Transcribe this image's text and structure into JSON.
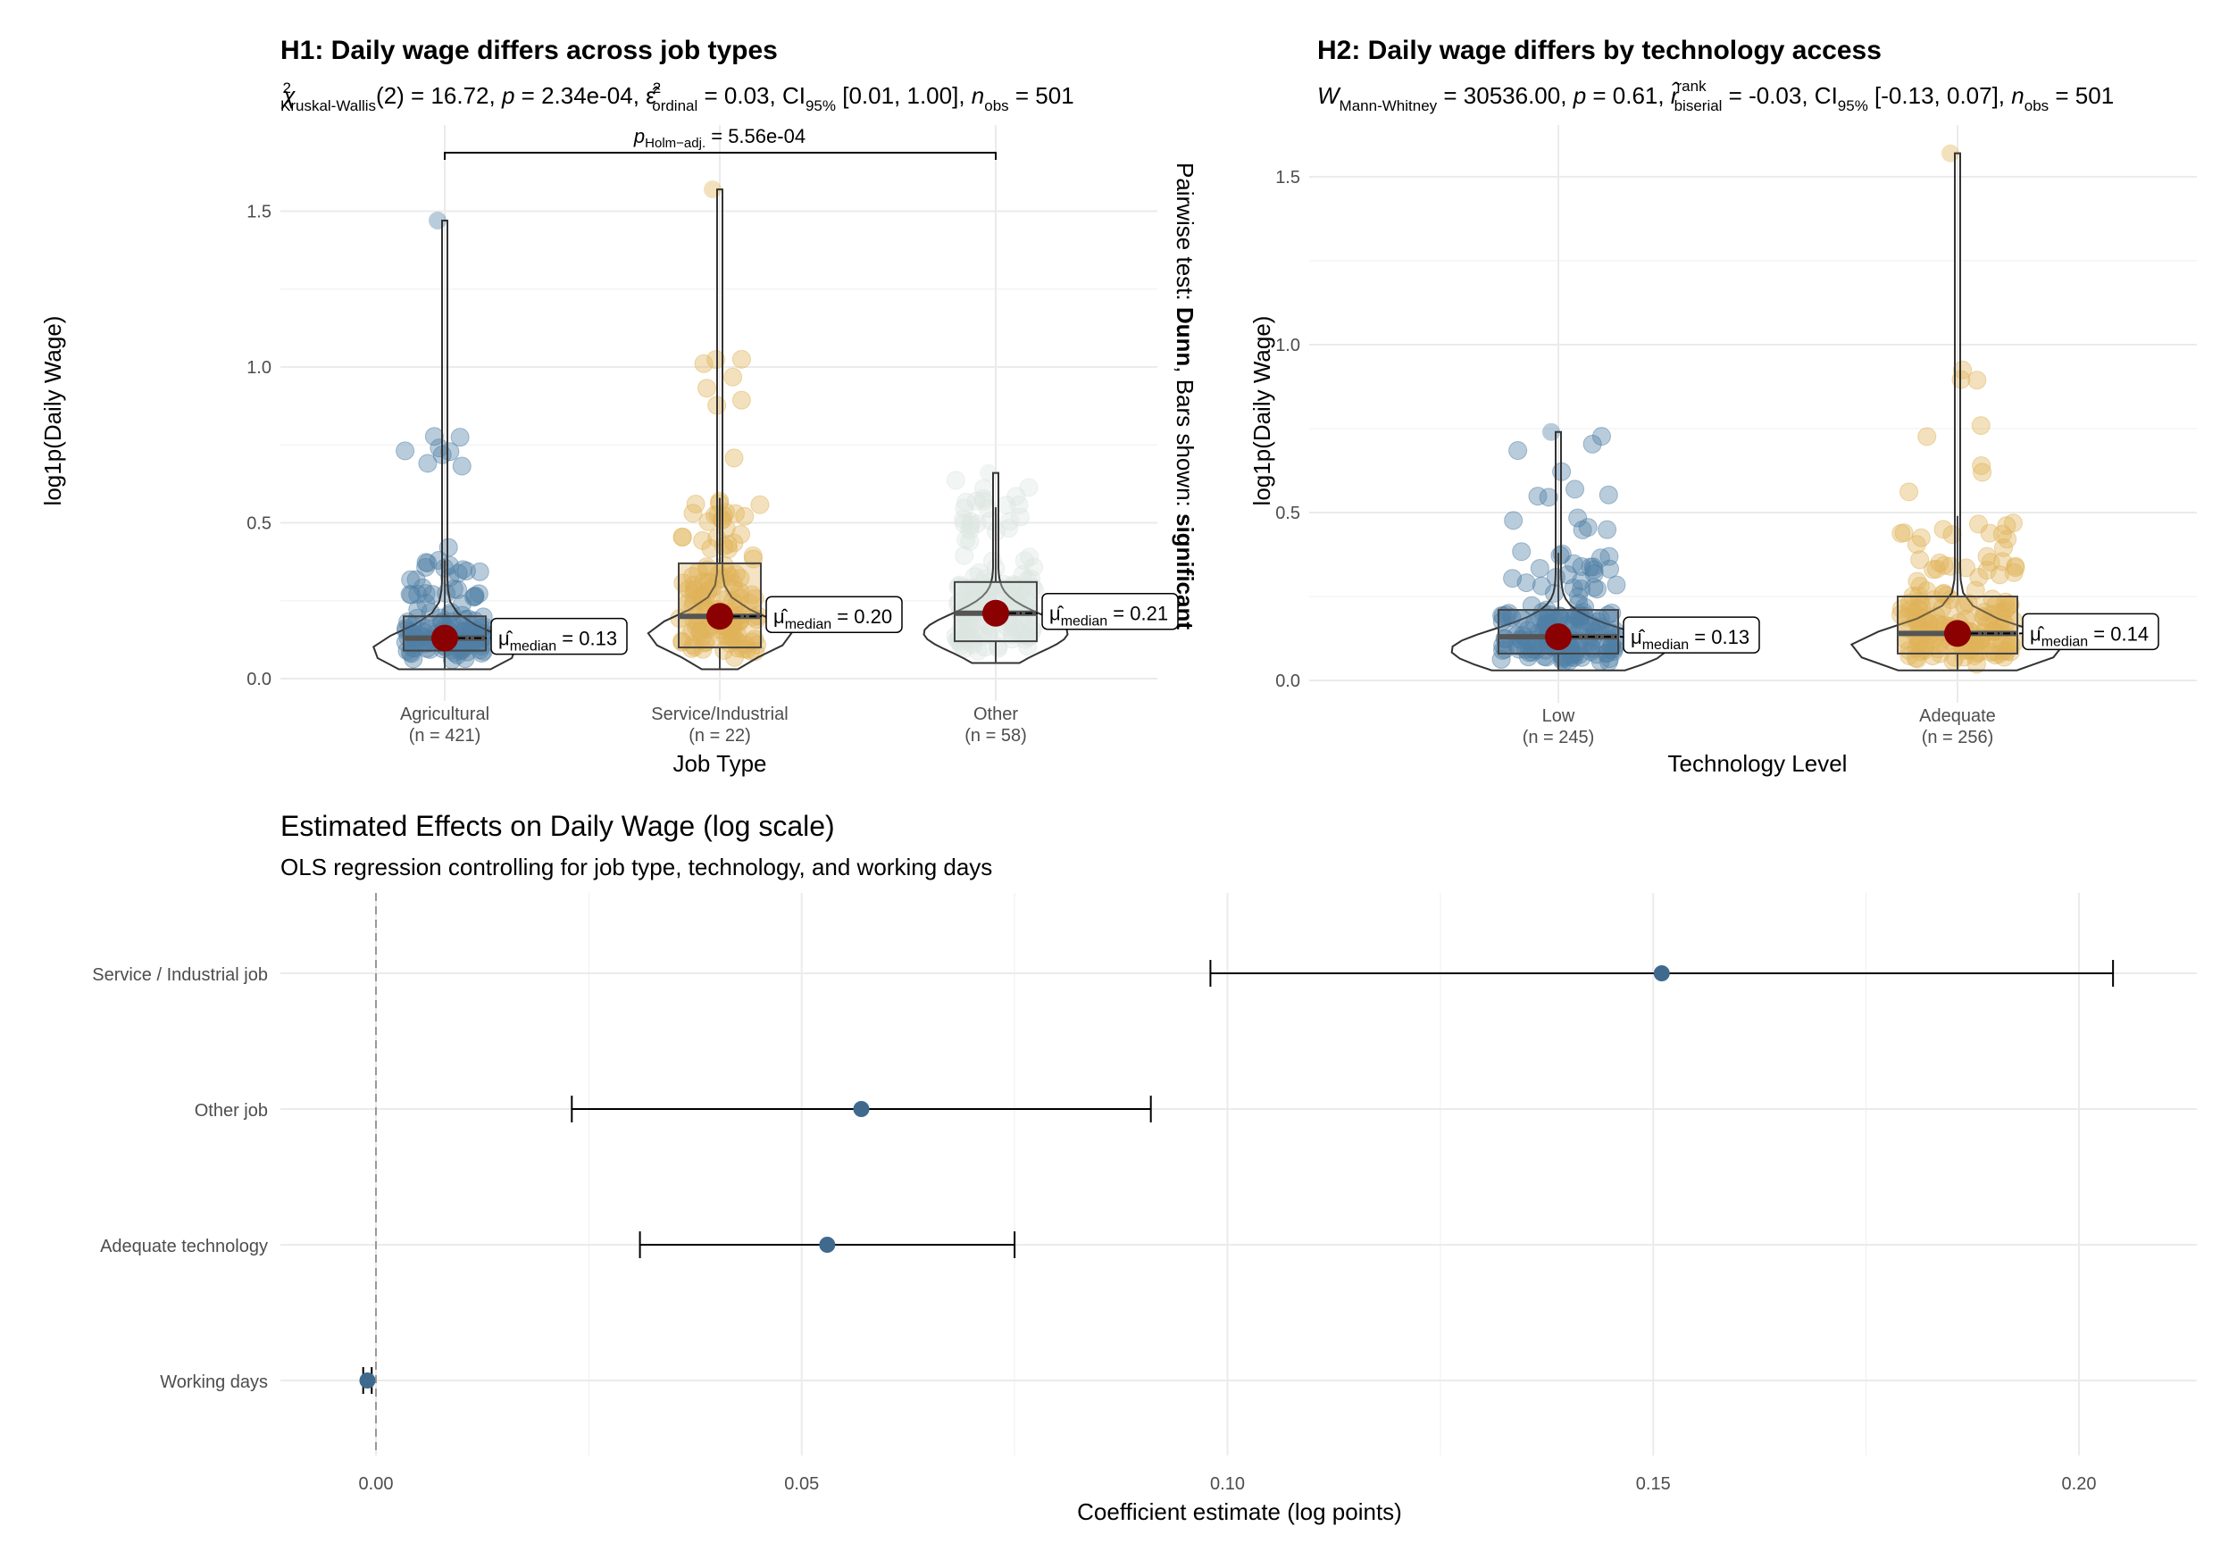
{
  "chart_data": [
    {
      "id": "h1",
      "type": "violin-box-scatter",
      "title": "H1: Daily wage differs across job types",
      "subtitle": {
        "stat_symbol": "χ",
        "stat_sup": "2",
        "stat_sub": "Kruskal-Wallis",
        "stat_rest": "(2) = 16.72, ",
        "p_label": "p",
        "p_rest": " = 2.34e-04, ",
        "eff_symbol": "ε̂",
        "eff_sup": "2",
        "eff_sub": "ordinal",
        "eff_rest": " = 0.03, CI",
        "ci_sub": "95%",
        "ci_rest": " [0.01, 1.00], ",
        "n_label": "n",
        "n_sub": "obs",
        "n_rest": " = 501"
      },
      "xlabel": "Job Type",
      "ylabel": "log1p(Daily Wage)",
      "ylim": [
        0,
        1.65
      ],
      "yticks": [
        "0.0",
        "0.5",
        "1.0",
        "1.5"
      ],
      "ytick_values": [
        0,
        0.5,
        1.0,
        1.5
      ],
      "groups": [
        {
          "name": "Agricultural",
          "n_label": "(n = 421)",
          "color": "#4f7fa6",
          "median": 0.13,
          "median_label": "= 0.13",
          "q1": 0.09,
          "q3": 0.2,
          "whisker_low": 0.03,
          "whisker_high": 0.38,
          "max": 1.47
        },
        {
          "name": "Service/Industrial",
          "n_label": "(n = 22)",
          "color": "#e0b35a",
          "median": 0.2,
          "median_label": "= 0.20",
          "q1": 0.1,
          "q3": 0.37,
          "whisker_low": 0.03,
          "whisker_high": 0.58,
          "max": 1.57
        },
        {
          "name": "Other",
          "n_label": "(n = 58)",
          "color": "#dde6e1",
          "median": 0.21,
          "median_label": "= 0.21",
          "q1": 0.12,
          "q3": 0.31,
          "whisker_low": 0.05,
          "whisker_high": 0.55,
          "max": 0.66
        }
      ],
      "median_symbol": "μ̂",
      "median_sub": "median",
      "pairwise": {
        "from": "Agricultural",
        "to": "Other",
        "label_p": "p",
        "label_sub": "Holm−adj.",
        "label_rest": " = 5.56e-04"
      },
      "caption": {
        "part1": "Pairwise test: ",
        "part2": "Dunn",
        "part3": ", Bars shown: ",
        "part4": "significant"
      }
    },
    {
      "id": "h2",
      "type": "violin-box-scatter",
      "title": "H2: Daily wage differs by technology access",
      "subtitle": {
        "stat_symbol": "W",
        "stat_sub": "Mann-Whitney",
        "stat_rest": " = 30536.00, ",
        "p_label": "p",
        "p_rest": " = 0.61, ",
        "eff_symbol": "r̂",
        "eff_sup": "rank",
        "eff_sub": "biserial",
        "eff_rest": " = -0.03, CI",
        "ci_sub": "95%",
        "ci_rest": " [-0.13, 0.07], ",
        "n_label": "n",
        "n_sub": "obs",
        "n_rest": " = 501"
      },
      "xlabel": "Technology Level",
      "ylabel": "log1p(Daily Wage)",
      "ylim": [
        0,
        1.6
      ],
      "yticks": [
        "0.0",
        "0.5",
        "1.0",
        "1.5"
      ],
      "ytick_values": [
        0,
        0.5,
        1.0,
        1.5
      ],
      "groups": [
        {
          "name": "Low",
          "n_label": "(n = 245)",
          "color": "#4f7fa6",
          "median": 0.13,
          "median_label": "= 0.13",
          "q1": 0.08,
          "q3": 0.21,
          "whisker_low": 0.03,
          "whisker_high": 0.38,
          "max": 0.74
        },
        {
          "name": "Adequate",
          "n_label": "(n = 256)",
          "color": "#e0b35a",
          "median": 0.14,
          "median_label": "= 0.14",
          "q1": 0.08,
          "q3": 0.25,
          "whisker_low": 0.03,
          "whisker_high": 0.49,
          "max": 1.57
        }
      ],
      "median_symbol": "μ̂",
      "median_sub": "median"
    },
    {
      "id": "coef",
      "type": "scatter",
      "title": "Estimated Effects on Daily Wage (log scale)",
      "subtitle": "OLS regression controlling for job type, technology, and working days",
      "xlabel": "Coefficient estimate (log points)",
      "xlim": [
        -0.013,
        0.215
      ],
      "xticks": [
        "0.00",
        "0.05",
        "0.10",
        "0.15",
        "0.20"
      ],
      "xtick_values": [
        0,
        0.05,
        0.1,
        0.15,
        0.2
      ],
      "reference_line": 0,
      "terms": [
        {
          "label": "Service / Industrial job",
          "estimate": 0.151,
          "ci_low": 0.098,
          "ci_high": 0.204
        },
        {
          "label": "Other job",
          "estimate": 0.057,
          "ci_low": 0.023,
          "ci_high": 0.091
        },
        {
          "label": "Adequate technology",
          "estimate": 0.053,
          "ci_low": 0.031,
          "ci_high": 0.075
        },
        {
          "label": "Working days",
          "estimate": -0.001,
          "ci_low": -0.0015,
          "ci_high": -0.0005
        }
      ],
      "point_color": "#3f6a8e"
    }
  ],
  "colors": {
    "median_dot": "#8b0000",
    "box_stroke": "#333333",
    "grid": "#ebebeb"
  }
}
